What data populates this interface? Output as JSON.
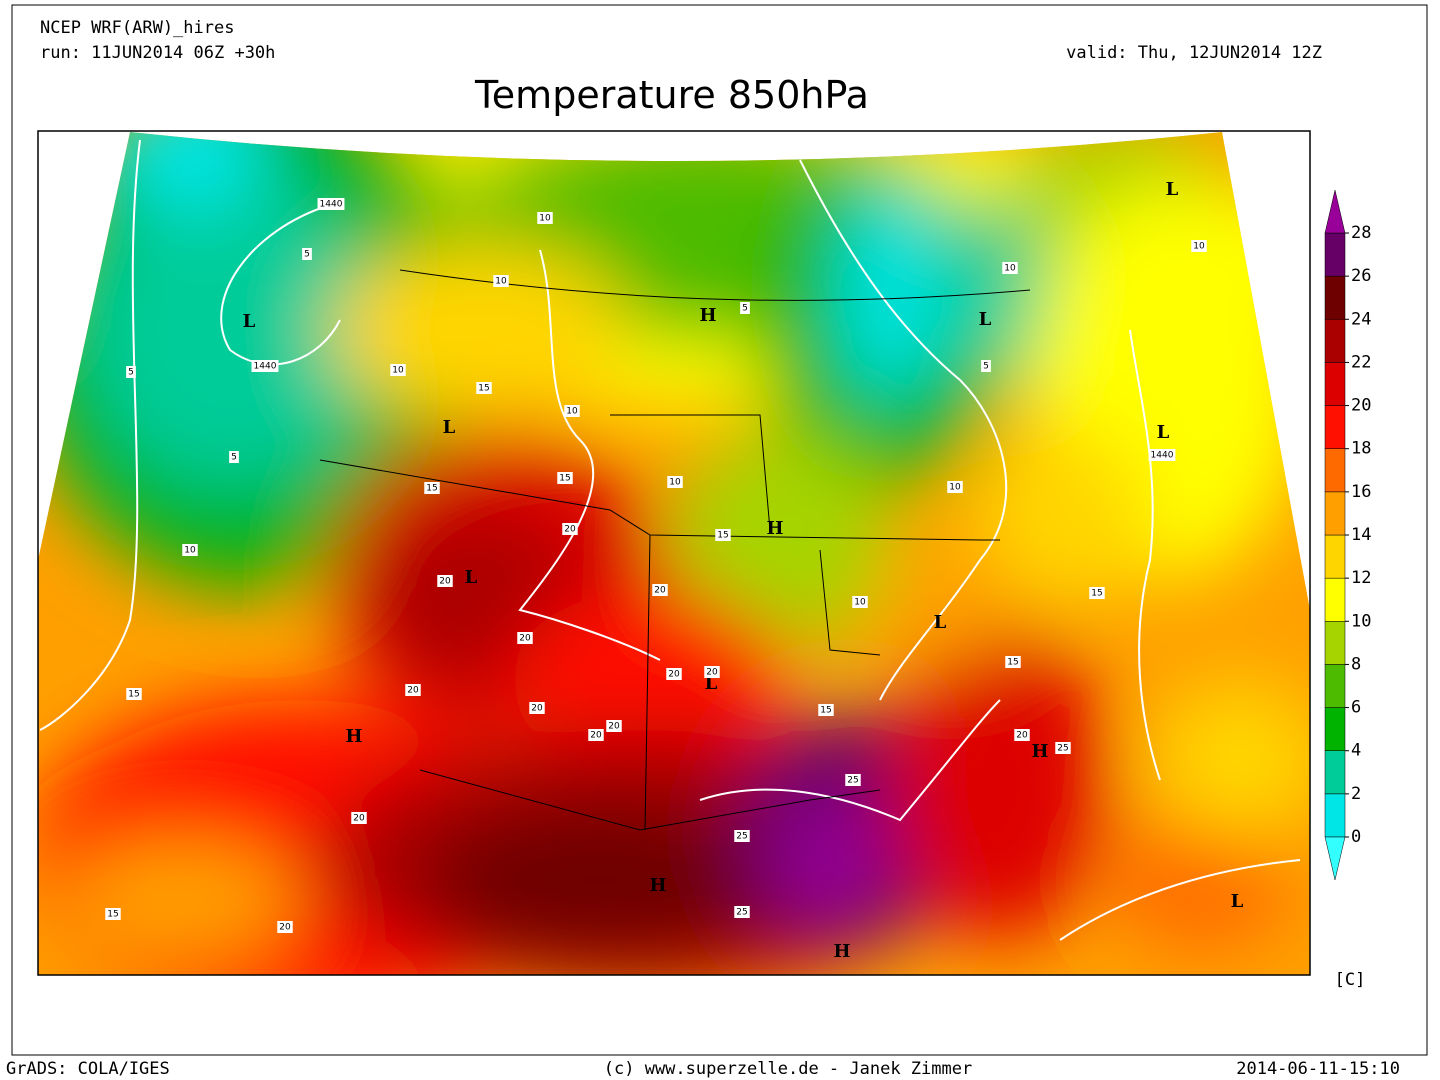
{
  "header": {
    "model": "NCEP WRF(ARW)_hires",
    "run": "run: 11JUN2014 06Z +30h",
    "valid": "valid: Thu, 12JUN2014 12Z"
  },
  "title": "Temperature 850hPa",
  "colorbar": {
    "ticks": [
      0,
      2,
      4,
      6,
      8,
      10,
      12,
      14,
      16,
      18,
      20,
      22,
      24,
      26,
      28
    ],
    "colors": [
      "#33ffff",
      "#00e6e6",
      "#00cc99",
      "#00b300",
      "#4dbb00",
      "#a6d400",
      "#ffff00",
      "#ffd500",
      "#ffa000",
      "#ff6a00",
      "#ff1000",
      "#dd0000",
      "#aa0000",
      "#6e0000",
      "#660066",
      "#990099"
    ],
    "unit": "[C]"
  },
  "map_labels": {
    "highs": [
      "H",
      "H",
      "H",
      "H",
      "H",
      "H"
    ],
    "lows": [
      "L",
      "L",
      "L",
      "L",
      "L",
      "L",
      "L",
      "L",
      "L"
    ],
    "contours": [
      1440,
      1440,
      1440,
      5,
      5,
      5,
      5,
      5,
      10,
      10,
      10,
      10,
      10,
      10,
      10,
      10,
      10,
      10,
      15,
      15,
      15,
      15,
      15,
      15,
      15,
      15,
      15,
      20,
      20,
      20,
      20,
      20,
      20,
      20,
      20,
      20,
      20,
      20,
      20,
      20,
      25,
      25,
      25,
      25
    ]
  },
  "footer": {
    "left": "GrADS: COLA/IGES",
    "center": "(c) www.superzelle.de - Janek Zimmer",
    "right": "2014-06-11-15:10"
  }
}
